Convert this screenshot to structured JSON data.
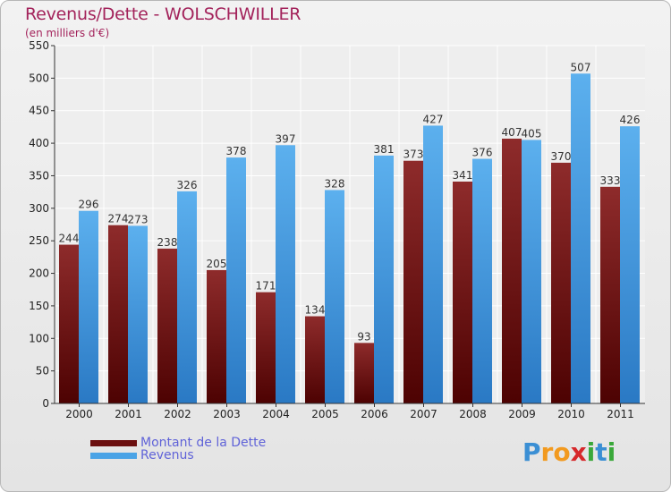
{
  "header": {
    "title": "Revenus/Dette - WOLSCHWILLER",
    "subtitle": "(en milliers d'€)"
  },
  "chart_data": {
    "type": "bar",
    "title": "Revenus/Dette - WOLSCHWILLER",
    "ylabel": "(en milliers d'€)",
    "xlabel": "",
    "categories": [
      "2000",
      "2001",
      "2002",
      "2003",
      "2004",
      "2005",
      "2006",
      "2007",
      "2008",
      "2009",
      "2010",
      "2011"
    ],
    "series": [
      {
        "name": "Montant de la Dette",
        "color": "#7a1a1a",
        "values": [
          244,
          274,
          238,
          205,
          171,
          134,
          93,
          373,
          341,
          407,
          370,
          333
        ]
      },
      {
        "name": "Revenus",
        "color": "#4aa3e6",
        "values": [
          296,
          273,
          326,
          378,
          397,
          328,
          381,
          427,
          376,
          405,
          507,
          426
        ]
      }
    ],
    "ylim": [
      0,
      550
    ],
    "yticks": [
      0,
      50,
      100,
      150,
      200,
      250,
      300,
      350,
      400,
      450,
      500,
      550
    ],
    "grid": true,
    "legend": "bottom-left"
  },
  "legend": {
    "items": [
      {
        "label": "Montant de la Dette",
        "color": "#6b0f0f"
      },
      {
        "label": "Revenus",
        "color": "#4aa3e6"
      }
    ]
  },
  "logo": {
    "letters": [
      "P",
      "r",
      "o",
      "x",
      "i",
      "t",
      "i"
    ],
    "colors": [
      "#3b8fd4",
      "#f29a1f",
      "#f29a1f",
      "#d6282b",
      "#3aa83a",
      "#3b8fd4",
      "#3aa83a"
    ]
  }
}
